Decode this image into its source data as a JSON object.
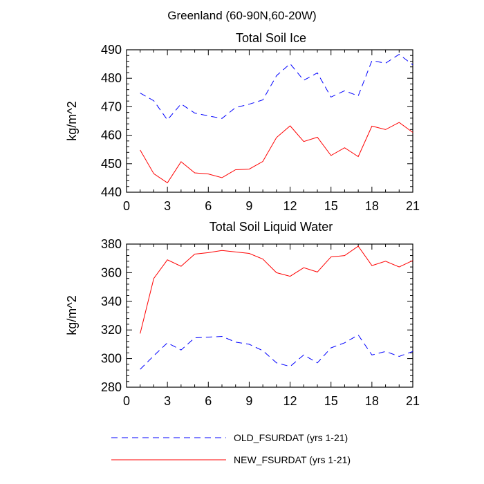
{
  "figure": {
    "title": "Greenland (60-90N,60-20W)"
  },
  "chart_data": [
    {
      "type": "line",
      "title": "Total Soil Ice",
      "xlabel": "",
      "ylabel": "kg/m^2",
      "xlim": [
        0,
        21
      ],
      "ylim": [
        440,
        490
      ],
      "xticks": [
        0,
        3,
        6,
        9,
        12,
        15,
        18,
        21
      ],
      "yticks": [
        440,
        450,
        460,
        470,
        480,
        490
      ],
      "x": [
        1,
        2,
        3,
        4,
        5,
        6,
        7,
        8,
        9,
        10,
        11,
        12,
        13,
        14,
        15,
        16,
        17,
        18,
        19,
        20,
        21
      ],
      "series": [
        {
          "name": "OLD_FSURDAT (yrs 1-21)",
          "color": "#0000ff",
          "dash": "dashed",
          "values": [
            474.8,
            472.1,
            465.4,
            471.0,
            467.8,
            466.8,
            465.9,
            469.7,
            470.9,
            472.4,
            480.9,
            485.1,
            479.3,
            481.9,
            473.4,
            475.6,
            473.8,
            486.2,
            485.3,
            488.4,
            484.7
          ]
        },
        {
          "name": "NEW_FSURDAT (yrs 1-21)",
          "color": "#ff0000",
          "dash": "solid",
          "values": [
            454.8,
            446.5,
            443.3,
            450.7,
            446.8,
            446.4,
            445.1,
            447.9,
            448.1,
            450.8,
            459.2,
            463.3,
            457.8,
            459.3,
            452.9,
            455.6,
            452.5,
            463.2,
            462.0,
            464.5,
            461.0
          ]
        }
      ]
    },
    {
      "type": "line",
      "title": "Total Soil Liquid Water",
      "xlabel": "",
      "ylabel": "kg/m^2",
      "xlim": [
        0,
        21
      ],
      "ylim": [
        280,
        380
      ],
      "xticks": [
        0,
        3,
        6,
        9,
        12,
        15,
        18,
        21
      ],
      "yticks": [
        280,
        300,
        320,
        340,
        360,
        380
      ],
      "x": [
        1,
        2,
        3,
        4,
        5,
        6,
        7,
        8,
        9,
        10,
        11,
        12,
        13,
        14,
        15,
        16,
        17,
        18,
        19,
        20,
        21
      ],
      "series": [
        {
          "name": "OLD_FSURDAT (yrs 1-21)",
          "color": "#0000ff",
          "dash": "dashed",
          "values": [
            292.5,
            302.0,
            311.0,
            306.0,
            314.5,
            315.0,
            315.5,
            311.5,
            310.0,
            305.5,
            297.0,
            294.5,
            302.5,
            297.0,
            307.5,
            311.0,
            316.5,
            302.5,
            305.0,
            301.5,
            305.0
          ]
        },
        {
          "name": "NEW_FSURDAT (yrs 1-21)",
          "color": "#ff0000",
          "dash": "solid",
          "values": [
            317.5,
            356.0,
            369.0,
            364.5,
            373.0,
            374.0,
            375.5,
            374.5,
            373.5,
            369.5,
            360.0,
            357.5,
            363.5,
            360.5,
            371.0,
            372.0,
            378.5,
            365.0,
            368.0,
            364.0,
            368.5
          ]
        }
      ]
    }
  ],
  "legend": {
    "placement": "bottom",
    "items": [
      {
        "label": "OLD_FSURDAT (yrs 1-21)",
        "color": "#0000ff",
        "dash": "dashed"
      },
      {
        "label": "NEW_FSURDAT (yrs 1-21)",
        "color": "#ff0000",
        "dash": "solid"
      }
    ]
  }
}
